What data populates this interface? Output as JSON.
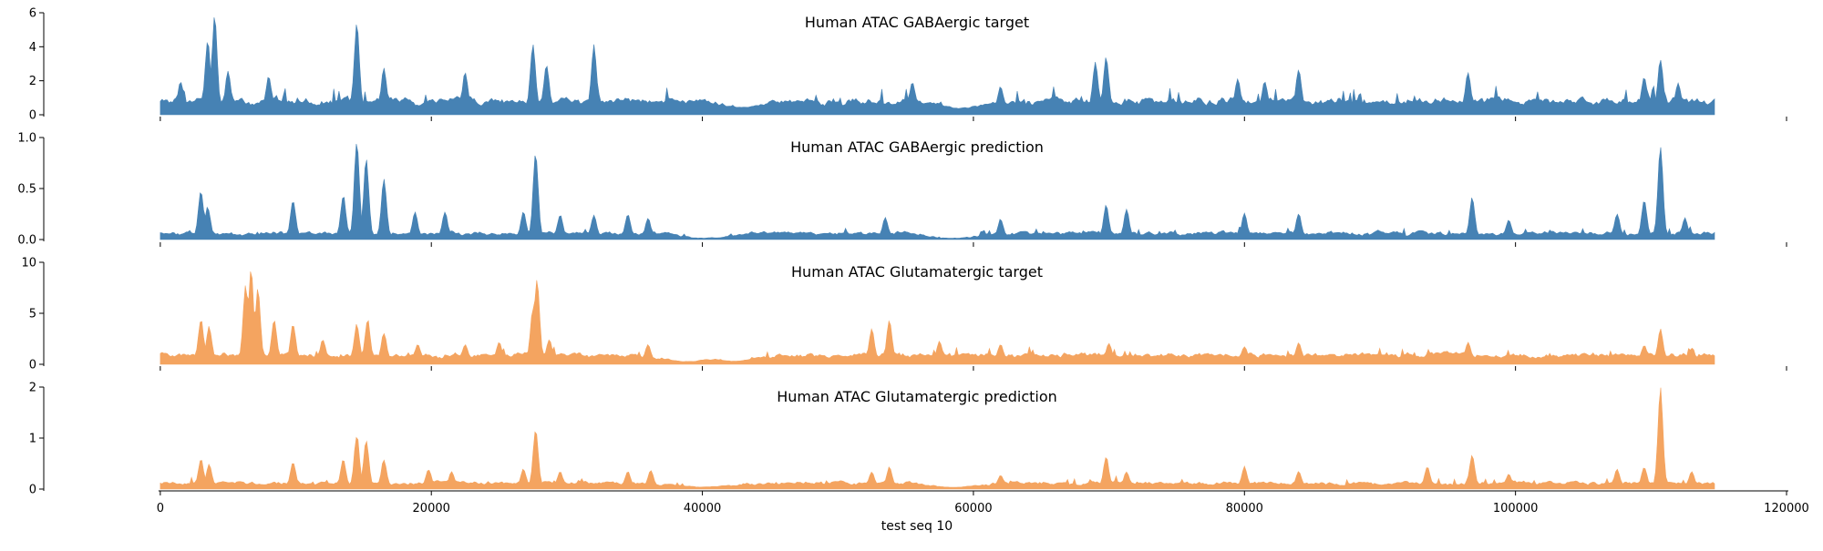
{
  "chart_data": [
    {
      "type": "area",
      "title": "Human ATAC GABAergic target",
      "color": "#4682b4",
      "x_range": [
        0,
        114688
      ],
      "xlim": [
        -8600,
        120000
      ],
      "ylim": [
        0,
        6
      ],
      "yticks": [
        0,
        2,
        4,
        6
      ],
      "baseline": 0.8,
      "noise": 0.45,
      "peaks": [
        {
          "x": 1500,
          "y": 2.0
        },
        {
          "x": 3500,
          "y": 4.5
        },
        {
          "x": 4000,
          "y": 5.9
        },
        {
          "x": 5000,
          "y": 2.6
        },
        {
          "x": 8000,
          "y": 2.3
        },
        {
          "x": 14500,
          "y": 5.5
        },
        {
          "x": 16500,
          "y": 2.8
        },
        {
          "x": 22500,
          "y": 2.6
        },
        {
          "x": 27500,
          "y": 4.3
        },
        {
          "x": 28500,
          "y": 3.0
        },
        {
          "x": 32000,
          "y": 4.2
        },
        {
          "x": 55500,
          "y": 2.1
        },
        {
          "x": 62000,
          "y": 1.9
        },
        {
          "x": 69000,
          "y": 3.2
        },
        {
          "x": 69800,
          "y": 3.5
        },
        {
          "x": 79500,
          "y": 2.2
        },
        {
          "x": 81500,
          "y": 2.0
        },
        {
          "x": 84000,
          "y": 2.8
        },
        {
          "x": 96500,
          "y": 2.6
        },
        {
          "x": 109500,
          "y": 2.3
        },
        {
          "x": 110700,
          "y": 3.3
        },
        {
          "x": 112000,
          "y": 1.9
        }
      ],
      "dips": [
        {
          "x": 43000,
          "y": 0.4
        },
        {
          "x": 59000,
          "y": 0.3
        }
      ]
    },
    {
      "type": "area",
      "title": "Human ATAC GABAergic prediction",
      "color": "#4682b4",
      "x_range": [
        0,
        114688
      ],
      "xlim": [
        -8600,
        120000
      ],
      "ylim": [
        0,
        1.0
      ],
      "yticks": [
        0.0,
        0.5,
        1.0
      ],
      "yticklabels": [
        "0.0",
        "0.5",
        "1.0"
      ],
      "baseline": 0.06,
      "noise": 0.04,
      "peaks": [
        {
          "x": 3000,
          "y": 0.5
        },
        {
          "x": 3500,
          "y": 0.33
        },
        {
          "x": 9800,
          "y": 0.4
        },
        {
          "x": 13500,
          "y": 0.45
        },
        {
          "x": 14500,
          "y": 1.0
        },
        {
          "x": 15200,
          "y": 0.82
        },
        {
          "x": 16500,
          "y": 0.6
        },
        {
          "x": 18800,
          "y": 0.27
        },
        {
          "x": 21000,
          "y": 0.28
        },
        {
          "x": 26800,
          "y": 0.28
        },
        {
          "x": 27700,
          "y": 0.88
        },
        {
          "x": 29500,
          "y": 0.25
        },
        {
          "x": 32000,
          "y": 0.25
        },
        {
          "x": 34500,
          "y": 0.25
        },
        {
          "x": 36000,
          "y": 0.22
        },
        {
          "x": 53500,
          "y": 0.22
        },
        {
          "x": 62000,
          "y": 0.22
        },
        {
          "x": 69800,
          "y": 0.35
        },
        {
          "x": 71300,
          "y": 0.3
        },
        {
          "x": 80000,
          "y": 0.26
        },
        {
          "x": 84000,
          "y": 0.26
        },
        {
          "x": 96800,
          "y": 0.42
        },
        {
          "x": 99500,
          "y": 0.2
        },
        {
          "x": 107500,
          "y": 0.26
        },
        {
          "x": 109500,
          "y": 0.4
        },
        {
          "x": 110700,
          "y": 0.95
        },
        {
          "x": 112500,
          "y": 0.22
        }
      ],
      "dips": [
        {
          "x": 40000,
          "y": 0.005
        },
        {
          "x": 58500,
          "y": 0.005
        }
      ]
    },
    {
      "type": "area",
      "title": "Human ATAC Glutamatergic target",
      "color": "#f4a460",
      "x_range": [
        0,
        114688
      ],
      "xlim": [
        -8600,
        120000
      ],
      "ylim": [
        0,
        10
      ],
      "yticks": [
        0,
        5,
        10
      ],
      "baseline": 0.9,
      "noise": 0.5,
      "peaks": [
        {
          "x": 3000,
          "y": 4.5
        },
        {
          "x": 3600,
          "y": 3.8
        },
        {
          "x": 6300,
          "y": 8.0
        },
        {
          "x": 6700,
          "y": 9.8
        },
        {
          "x": 7200,
          "y": 7.5
        },
        {
          "x": 8400,
          "y": 4.5
        },
        {
          "x": 9800,
          "y": 4.0
        },
        {
          "x": 12000,
          "y": 2.5
        },
        {
          "x": 14500,
          "y": 4.0
        },
        {
          "x": 15300,
          "y": 4.5
        },
        {
          "x": 16500,
          "y": 3.2
        },
        {
          "x": 19000,
          "y": 2.0
        },
        {
          "x": 22500,
          "y": 2.0
        },
        {
          "x": 25000,
          "y": 2.2
        },
        {
          "x": 27500,
          "y": 5.5
        },
        {
          "x": 27800,
          "y": 8.7
        },
        {
          "x": 28700,
          "y": 2.5
        },
        {
          "x": 36000,
          "y": 2.3
        },
        {
          "x": 52500,
          "y": 3.5
        },
        {
          "x": 53800,
          "y": 4.5
        },
        {
          "x": 57500,
          "y": 2.3
        },
        {
          "x": 62000,
          "y": 2.0
        },
        {
          "x": 70000,
          "y": 2.1
        },
        {
          "x": 80000,
          "y": 1.8
        },
        {
          "x": 84000,
          "y": 2.2
        },
        {
          "x": 96500,
          "y": 2.2
        },
        {
          "x": 109500,
          "y": 1.9
        },
        {
          "x": 110700,
          "y": 3.5
        },
        {
          "x": 113000,
          "y": 1.6
        }
      ],
      "dips": [
        {
          "x": 39000,
          "y": 0.2
        },
        {
          "x": 42500,
          "y": 0.2
        }
      ]
    },
    {
      "type": "area",
      "title": "Human ATAC Glutamatergic prediction",
      "color": "#f4a460",
      "x_range": [
        0,
        114688
      ],
      "xlim": [
        -8600,
        120000
      ],
      "ylim": [
        0,
        2.0
      ],
      "yticks": [
        0,
        1,
        2
      ],
      "baseline": 0.12,
      "noise": 0.07,
      "xlabel": "test seq 10",
      "xticks": [
        0,
        20000,
        40000,
        60000,
        80000,
        100000,
        120000
      ],
      "peaks": [
        {
          "x": 3000,
          "y": 0.6
        },
        {
          "x": 3600,
          "y": 0.5
        },
        {
          "x": 9800,
          "y": 0.55
        },
        {
          "x": 13500,
          "y": 0.6
        },
        {
          "x": 14500,
          "y": 1.1
        },
        {
          "x": 15200,
          "y": 1.0
        },
        {
          "x": 16500,
          "y": 0.6
        },
        {
          "x": 19800,
          "y": 0.4
        },
        {
          "x": 21500,
          "y": 0.35
        },
        {
          "x": 26800,
          "y": 0.4
        },
        {
          "x": 27700,
          "y": 1.2
        },
        {
          "x": 29500,
          "y": 0.35
        },
        {
          "x": 34500,
          "y": 0.35
        },
        {
          "x": 36200,
          "y": 0.4
        },
        {
          "x": 52500,
          "y": 0.35
        },
        {
          "x": 53800,
          "y": 0.45
        },
        {
          "x": 62000,
          "y": 0.3
        },
        {
          "x": 69800,
          "y": 0.65
        },
        {
          "x": 71300,
          "y": 0.35
        },
        {
          "x": 80000,
          "y": 0.45
        },
        {
          "x": 84000,
          "y": 0.35
        },
        {
          "x": 93500,
          "y": 0.45
        },
        {
          "x": 96800,
          "y": 0.7
        },
        {
          "x": 99500,
          "y": 0.3
        },
        {
          "x": 107500,
          "y": 0.4
        },
        {
          "x": 109500,
          "y": 0.45
        },
        {
          "x": 110700,
          "y": 2.0
        },
        {
          "x": 113000,
          "y": 0.35
        }
      ],
      "dips": [
        {
          "x": 40000,
          "y": 0.02
        },
        {
          "x": 58500,
          "y": 0.02
        }
      ]
    }
  ]
}
